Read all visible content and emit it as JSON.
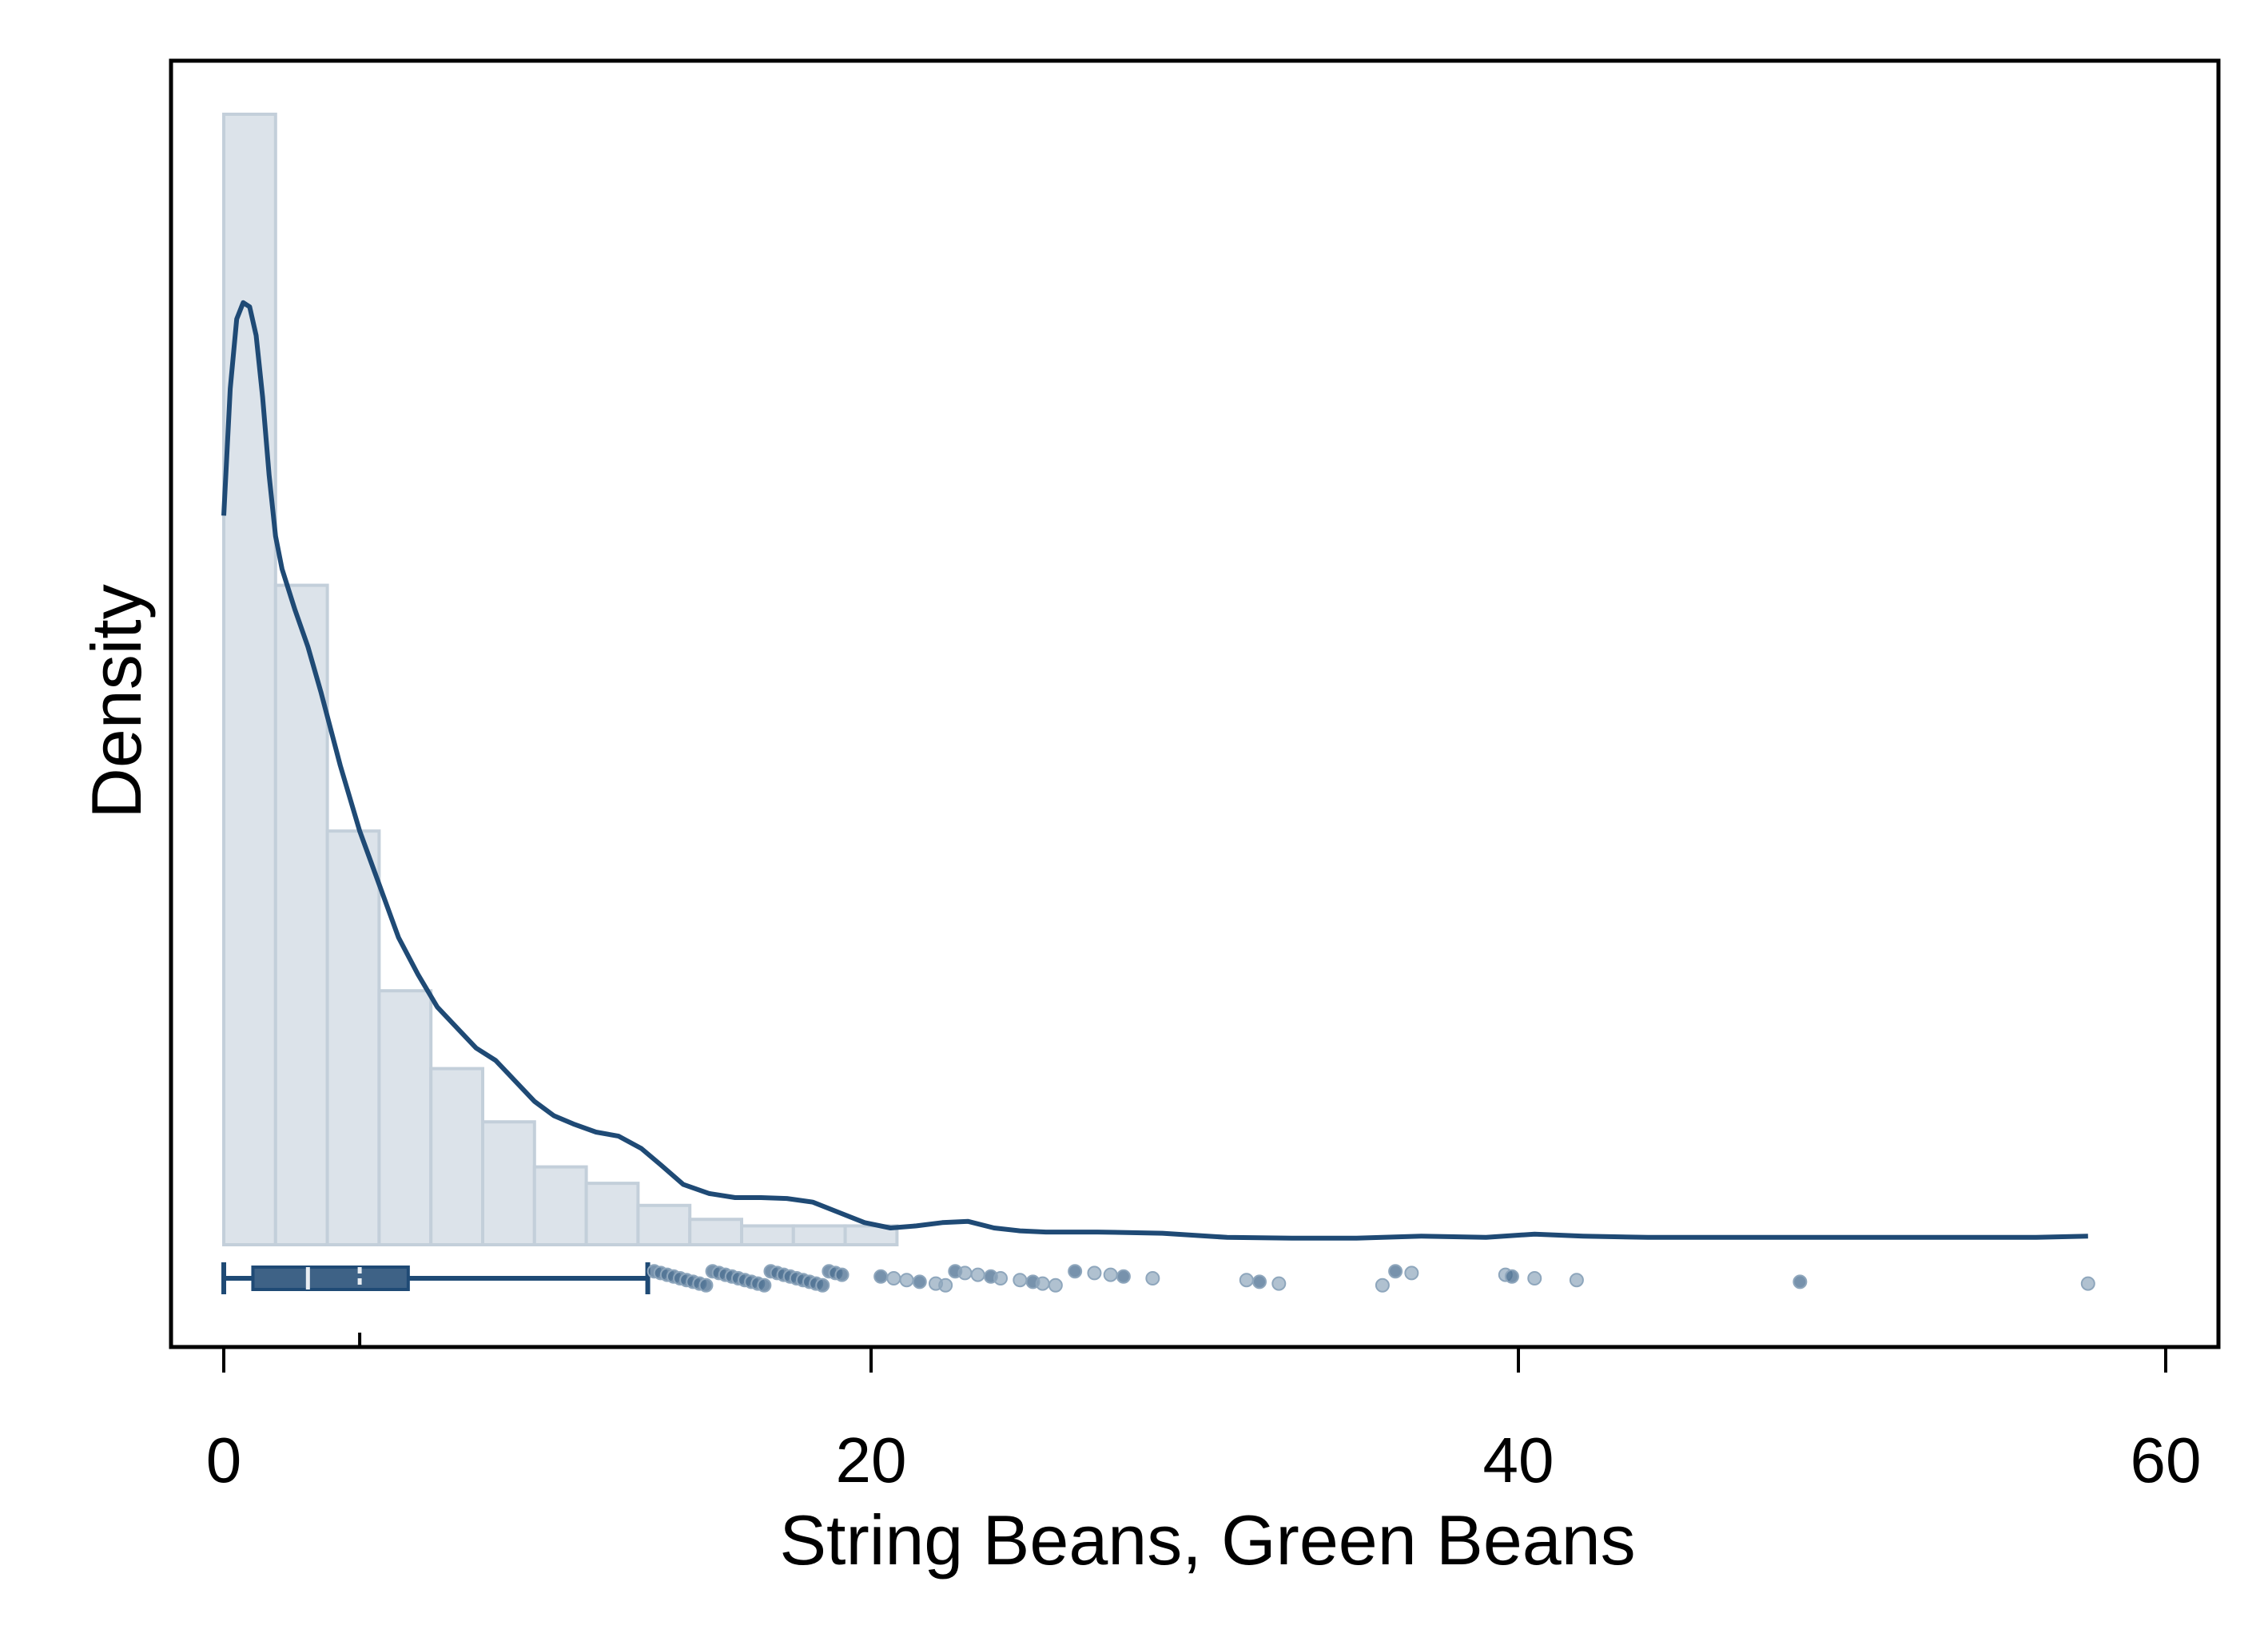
{
  "chart_data": {
    "type": "bar",
    "xlabel": "String Beans, Green Beans",
    "ylabel": "Density",
    "xlim": [
      -0.8,
      61.5
    ],
    "ylim": [
      0,
      0.28
    ],
    "x_ticks": [
      0,
      20,
      40,
      60
    ],
    "y_ticks_shown": false,
    "grid": false,
    "colors": {
      "bar_fill": "#dce3ea",
      "bar_edge": "#c3cfda",
      "line": "#1f4a75",
      "box_fill": "#3e6286",
      "outlier": "#8ea6bc"
    },
    "histogram": {
      "bin_edges": [
        0,
        1.6,
        3.2,
        4.8,
        6.4,
        8.0,
        9.6,
        11.2,
        12.8,
        14.4,
        16.0,
        17.6,
        19.2,
        20.8
      ],
      "density": [
        0.276,
        0.161,
        0.101,
        0.062,
        0.043,
        0.03,
        0.019,
        0.015,
        0.0096,
        0.0062,
        0.0046,
        0.0046,
        0.0046
      ]
    },
    "density_curve": {
      "x": [
        0,
        0.2,
        0.4,
        0.6,
        0.8,
        1.0,
        1.2,
        1.4,
        1.6,
        1.8,
        2.2,
        2.6,
        3.0,
        3.6,
        4.2,
        4.8,
        5.4,
        6.0,
        6.6,
        7.2,
        7.8,
        8.4,
        9.0,
        9.6,
        10.2,
        10.8,
        11.5,
        12.2,
        12.9,
        13.5,
        14.2,
        15.0,
        15.8,
        16.6,
        17.4,
        18.2,
        19.0,
        19.8,
        20.6,
        21.4,
        22.2,
        23.0,
        23.8,
        24.6,
        25.4,
        27.0,
        29.0,
        31.0,
        33.0,
        35.0,
        37.0,
        39.0,
        40.5,
        42.0,
        44.0,
        46.0,
        48.0,
        50.0,
        52.0,
        54.0,
        56.0,
        57.6
      ],
      "y": [
        0.178,
        0.209,
        0.226,
        0.23,
        0.229,
        0.222,
        0.207,
        0.188,
        0.173,
        0.165,
        0.155,
        0.146,
        0.135,
        0.117,
        0.101,
        0.088,
        0.075,
        0.066,
        0.058,
        0.053,
        0.048,
        0.045,
        0.04,
        0.035,
        0.0315,
        0.0295,
        0.0275,
        0.0265,
        0.0235,
        0.0195,
        0.0147,
        0.0125,
        0.0115,
        0.0115,
        0.0113,
        0.0104,
        0.0079,
        0.0054,
        0.0041,
        0.0046,
        0.0054,
        0.0057,
        0.0041,
        0.0034,
        0.0031,
        0.0031,
        0.0028,
        0.0018,
        0.0016,
        0.0016,
        0.0021,
        0.0018,
        0.0026,
        0.0021,
        0.0018,
        0.0018,
        0.0018,
        0.0018,
        0.0018,
        0.0018,
        0.0018,
        0.0021
      ]
    },
    "boxplot": {
      "whisker_low": 0,
      "q1": 0.9,
      "median": 2.6,
      "mean": 4.2,
      "q3": 5.7,
      "whisker_high": 13.1,
      "outliers": [
        13.3,
        13.5,
        13.7,
        13.9,
        14.1,
        14.3,
        14.5,
        14.7,
        14.9,
        15.1,
        15.3,
        15.5,
        15.7,
        15.9,
        16.1,
        16.3,
        16.5,
        16.7,
        16.9,
        17.1,
        17.3,
        17.5,
        17.7,
        17.9,
        18.1,
        18.3,
        18.5,
        18.7,
        18.9,
        19.1,
        20.3,
        20.7,
        21.1,
        21.5,
        22.0,
        22.3,
        22.6,
        22.9,
        23.3,
        23.7,
        24.0,
        24.6,
        25.0,
        25.3,
        25.7,
        26.3,
        26.9,
        27.4,
        27.8,
        28.7,
        31.6,
        32.0,
        32.6,
        35.8,
        36.2,
        36.7,
        39.6,
        39.8,
        40.5,
        41.8,
        48.7,
        57.6
      ]
    }
  }
}
